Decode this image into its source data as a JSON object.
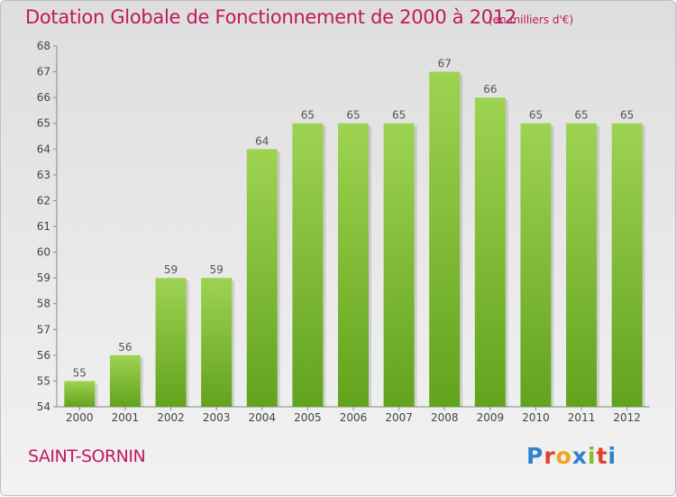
{
  "title": "Dotation Globale de Fonctionnement de 2000 à 2012",
  "subtitle": "(en milliers d'€)",
  "place": "SAINT-SORNIN",
  "logo": {
    "letters": [
      "P",
      "r",
      "o",
      "x",
      "i",
      "t",
      "i"
    ],
    "colors": [
      "#2f7fd3",
      "#e0402f",
      "#f4a21d",
      "#2f7fd3",
      "#7fbf2a",
      "#e0402f",
      "#2f7fd3"
    ]
  },
  "colors": {
    "bar_top": "#9ed352",
    "bar_bottom": "#62a31d",
    "title": "#c0185e"
  },
  "chart_data": {
    "type": "bar",
    "categories": [
      "2000",
      "2001",
      "2002",
      "2003",
      "2004",
      "2005",
      "2006",
      "2007",
      "2008",
      "2009",
      "2010",
      "2011",
      "2012"
    ],
    "values": [
      55,
      56,
      59,
      59,
      64,
      65,
      65,
      65,
      67,
      66,
      65,
      65,
      65
    ],
    "ylim": [
      54,
      68
    ],
    "yticks": [
      54,
      55,
      56,
      57,
      58,
      59,
      60,
      61,
      62,
      63,
      64,
      65,
      66,
      67,
      68
    ],
    "grid": false,
    "data_labels": true
  }
}
